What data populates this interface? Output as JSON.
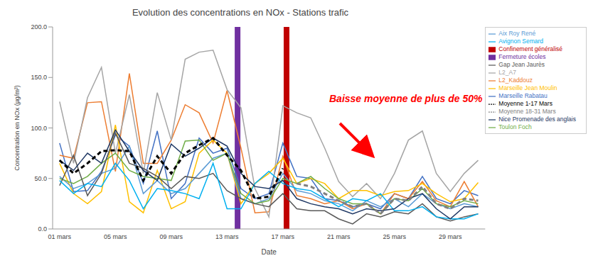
{
  "chart_data": {
    "type": "line",
    "title": "Evolution des concentrations en NOx - Stations trafic",
    "x_label": "Date",
    "y_label": "Concentration en NOx (µg/m³)",
    "annotations": [
      {
        "text": "Baisse moyenne de plus de 50%"
      }
    ],
    "categories": [
      "01 mars",
      null,
      null,
      null,
      "05 mars",
      null,
      null,
      null,
      "09 mars",
      null,
      null,
      null,
      "13 mars",
      null,
      null,
      null,
      "17 mars",
      null,
      null,
      null,
      "21 mars",
      null,
      null,
      null,
      "25 mars",
      null,
      null,
      null,
      "29 mars",
      null,
      null
    ],
    "ylim": [
      0,
      200
    ],
    "yticks": [
      {
        "value": 0,
        "label": "0.0"
      },
      {
        "value": 50,
        "label": "50.0"
      },
      {
        "value": 100,
        "label": "100.0"
      },
      {
        "value": 150,
        "label": "150.0"
      },
      {
        "value": 200,
        "label": "200.0"
      }
    ],
    "grid": false,
    "legend": "right",
    "series": [
      {
        "name": "Fermeture écoles",
        "type": "bar",
        "color": "#7030A0",
        "values": [
          null,
          null,
          null,
          null,
          null,
          null,
          null,
          null,
          null,
          null,
          null,
          null,
          null,
          200,
          null,
          null,
          null,
          null,
          null,
          null,
          null,
          null,
          null,
          null,
          null,
          null,
          null,
          null,
          null,
          null,
          null
        ]
      },
      {
        "name": "Confinement généralisé",
        "type": "bar",
        "color": "#C00000",
        "values": [
          null,
          null,
          null,
          null,
          null,
          null,
          null,
          null,
          null,
          null,
          null,
          null,
          null,
          null,
          null,
          null,
          200,
          null,
          null,
          null,
          null,
          null,
          null,
          null,
          null,
          null,
          null,
          null,
          null,
          null,
          null
        ]
      },
      {
        "name": "Marseille Rabatau",
        "type": "line",
        "color": "#4472C4",
        "line_style": "solid",
        "values": [
          85,
          37,
          38,
          57,
          93,
          82,
          45,
          97,
          30,
          45,
          90,
          75,
          80,
          40,
          30,
          35,
          85,
          52,
          50,
          30,
          28,
          22,
          25,
          20,
          35,
          30,
          52,
          30,
          25,
          38,
          33
        ]
      },
      {
        "name": "L2_Kaddouz",
        "type": "line",
        "color": "#ED7D31",
        "line_style": "solid",
        "values": [
          73,
          70,
          125,
          126,
          57,
          154,
          65,
          65,
          88,
          123,
          115,
          85,
          137,
          80,
          16,
          17,
          72,
          33,
          30,
          25,
          28,
          20,
          25,
          15,
          35,
          30,
          47,
          28,
          22,
          47,
          22
        ]
      },
      {
        "name": "L2_A7",
        "type": "line",
        "color": "#A5A5A5",
        "line_style": "solid",
        "values": [
          126,
          65,
          130,
          160,
          75,
          133,
          55,
          135,
          88,
          168,
          175,
          177,
          138,
          120,
          40,
          12,
          122,
          115,
          110,
          80,
          47,
          32,
          45,
          30,
          55,
          88,
          97,
          55,
          37,
          55,
          68
        ]
      },
      {
        "name": "Marseille Jean Moulin",
        "type": "line",
        "color": "#FFC000",
        "line_style": "solid",
        "values": [
          65,
          35,
          25,
          37,
          103,
          27,
          16,
          58,
          20,
          27,
          75,
          88,
          75,
          25,
          45,
          55,
          70,
          45,
          50,
          45,
          30,
          38,
          38,
          33,
          37,
          38,
          45,
          35,
          27,
          30,
          46
        ]
      },
      {
        "name": "Aix Roy René",
        "type": "line",
        "color": "#5B9BD5",
        "line_style": "solid",
        "values": [
          52,
          40,
          45,
          55,
          60,
          82,
          35,
          48,
          35,
          40,
          55,
          70,
          75,
          30,
          25,
          30,
          55,
          38,
          35,
          28,
          25,
          18,
          28,
          22,
          30,
          22,
          35,
          25,
          20,
          25,
          22
        ]
      },
      {
        "name": "Toulon Foch",
        "type": "line",
        "color": "#70AD47",
        "line_style": "solid",
        "values": [
          50,
          45,
          52,
          65,
          75,
          58,
          52,
          50,
          48,
          87,
          88,
          68,
          75,
          35,
          25,
          28,
          50,
          45,
          52,
          40,
          30,
          25,
          25,
          15,
          30,
          28,
          40,
          25,
          22,
          28,
          25
        ]
      },
      {
        "name": "Gap Jean Jaurès",
        "type": "line",
        "color": "#595959",
        "line_style": "solid",
        "values": [
          43,
          73,
          33,
          55,
          95,
          65,
          60,
          52,
          40,
          52,
          50,
          55,
          38,
          30,
          25,
          22,
          35,
          20,
          18,
          18,
          10,
          5,
          15,
          12,
          17,
          15,
          25,
          12,
          8,
          12,
          15
        ]
      },
      {
        "name": "Avignon Semard",
        "type": "line",
        "color": "#00B0F0",
        "line_style": "solid",
        "values": [
          48,
          35,
          45,
          42,
          65,
          48,
          20,
          40,
          38,
          35,
          30,
          65,
          20,
          20,
          45,
          57,
          45,
          40,
          38,
          30,
          22,
          30,
          28,
          35,
          18,
          18,
          22,
          12,
          10,
          10,
          15
        ]
      },
      {
        "name": "Nice Promenade des anglais",
        "type": "line",
        "color": "#1F3864",
        "line_style": "solid",
        "values": [
          68,
          58,
          75,
          65,
          98,
          77,
          58,
          48,
          84,
          72,
          80,
          90,
          82,
          55,
          42,
          40,
          48,
          30,
          25,
          22,
          20,
          15,
          20,
          18,
          20,
          30,
          35,
          20,
          10,
          22,
          22
        ]
      },
      {
        "name": "Moyenne 1-17 Mars",
        "type": "line",
        "color": "#000000",
        "line_style": "dashed",
        "values": [
          68,
          55,
          65,
          77,
          78,
          77,
          48,
          72,
          55,
          75,
          83,
          90,
          73,
          58,
          30,
          32,
          60,
          null,
          null,
          null,
          null,
          null,
          null,
          null,
          null,
          null,
          null,
          null,
          null,
          null,
          null
        ]
      },
      {
        "name": "Moyenne 18-31 Mars",
        "type": "line",
        "color": "#808080",
        "line_style": "dashed",
        "values": [
          null,
          null,
          null,
          null,
          null,
          null,
          null,
          null,
          null,
          null,
          null,
          null,
          null,
          null,
          null,
          null,
          null,
          45,
          42,
          35,
          28,
          22,
          25,
          15,
          30,
          28,
          42,
          25,
          20,
          30,
          28
        ]
      }
    ]
  }
}
